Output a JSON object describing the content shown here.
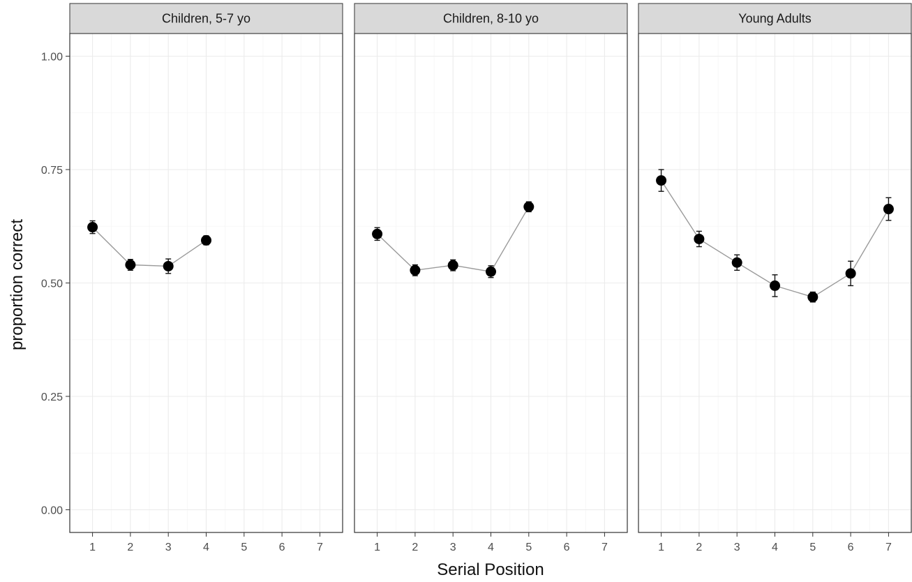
{
  "chart_data": {
    "type": "scatter",
    "facet_titles": [
      "Children, 5-7 yo",
      "Children, 8-10 yo",
      "Young Adults"
    ],
    "xlabel": "Serial Position",
    "ylabel": "proportion correct",
    "x_ticks": [
      1,
      2,
      3,
      4,
      5,
      6,
      7
    ],
    "y_ticks": [
      "0.00",
      "0.25",
      "0.50",
      "0.75",
      "1.00"
    ],
    "xlim": [
      0.4,
      7.6
    ],
    "ylim": [
      -0.05,
      1.05
    ],
    "grid": true,
    "connect_points": true,
    "panels": [
      {
        "title": "Children, 5-7 yo",
        "x": [
          1,
          2,
          3,
          4
        ],
        "y": [
          0.623,
          0.54,
          0.537,
          0.594
        ],
        "err_low": [
          0.609,
          0.528,
          0.521,
          0.584
        ],
        "err_high": [
          0.637,
          0.552,
          0.553,
          0.604
        ]
      },
      {
        "title": "Children, 8-10 yo",
        "x": [
          1,
          2,
          3,
          4,
          5
        ],
        "y": [
          0.608,
          0.528,
          0.539,
          0.525,
          0.668
        ],
        "err_low": [
          0.594,
          0.516,
          0.527,
          0.512,
          0.657
        ],
        "err_high": [
          0.622,
          0.54,
          0.551,
          0.538,
          0.679
        ]
      },
      {
        "title": "Young Adults",
        "x": [
          1,
          2,
          3,
          4,
          5,
          6,
          7
        ],
        "y": [
          0.726,
          0.597,
          0.545,
          0.494,
          0.469,
          0.521,
          0.663
        ],
        "err_low": [
          0.702,
          0.58,
          0.528,
          0.47,
          0.458,
          0.494,
          0.638
        ],
        "err_high": [
          0.75,
          0.614,
          0.562,
          0.518,
          0.48,
          0.548,
          0.688
        ]
      }
    ]
  }
}
